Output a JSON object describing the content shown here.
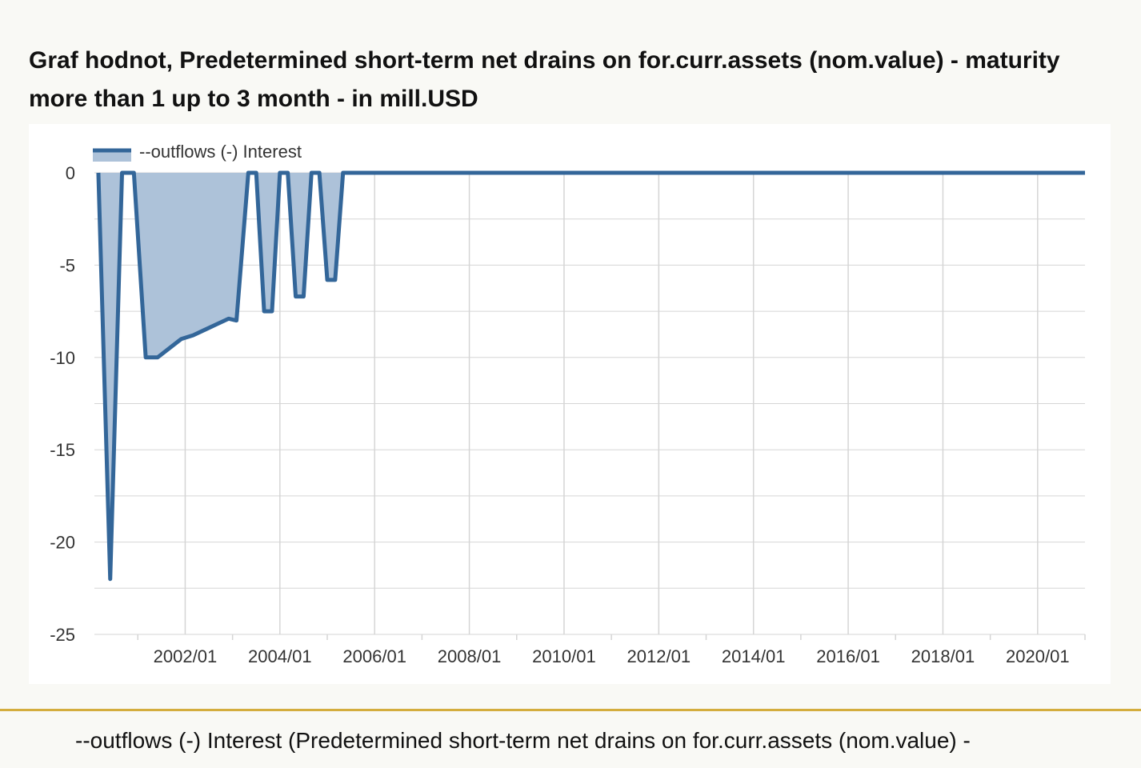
{
  "title": "Graf hodnot, Predetermined short-term net drains on for.curr.assets (nom.value) - maturity more than 1 up to 3 month - in mill.USD",
  "footer": {
    "caption": "--outflows (-) Interest (Predetermined short-term net drains on for.curr.assets (nom.value) -"
  },
  "chart_data": {
    "type": "area",
    "title": "Graf hodnot, Predetermined short-term net drains on for.curr.assets (nom.value) - maturity more than 1 up to 3 month - in mill.USD",
    "xlabel": "",
    "ylabel": "",
    "xlim": [
      "2000/02",
      "2021/01"
    ],
    "ylim": [
      -25,
      0
    ],
    "y_ticks": [
      0,
      -5,
      -10,
      -15,
      -20,
      -25
    ],
    "x_ticks": [
      "2002/01",
      "2004/01",
      "2006/01",
      "2008/01",
      "2010/01",
      "2012/01",
      "2014/01",
      "2016/01",
      "2018/01",
      "2020/01"
    ],
    "grid": true,
    "legend": {
      "position": "top-left"
    },
    "colors": {
      "line": "#336699",
      "fill": "#adc2d9",
      "grid": "#d5d5d5"
    },
    "series": [
      {
        "name": "--outflows (-) Interest",
        "points": [
          [
            "2000/03",
            0
          ],
          [
            "2000/06",
            -22
          ],
          [
            "2000/09",
            0
          ],
          [
            "2000/12",
            0
          ],
          [
            "2001/03",
            -10
          ],
          [
            "2001/06",
            -10
          ],
          [
            "2001/09",
            -9.5
          ],
          [
            "2001/12",
            -9
          ],
          [
            "2002/03",
            -8.8
          ],
          [
            "2002/06",
            -8.5
          ],
          [
            "2002/09",
            -8.2
          ],
          [
            "2002/12",
            -7.9
          ],
          [
            "2003/02",
            -8.0
          ],
          [
            "2003/05",
            0
          ],
          [
            "2003/07",
            0
          ],
          [
            "2003/09",
            -7.5
          ],
          [
            "2003/11",
            -7.5
          ],
          [
            "2004/01",
            0
          ],
          [
            "2004/03",
            0
          ],
          [
            "2004/05",
            -6.7
          ],
          [
            "2004/07",
            -6.7
          ],
          [
            "2004/09",
            0
          ],
          [
            "2004/11",
            0
          ],
          [
            "2005/01",
            -5.8
          ],
          [
            "2005/03",
            -5.8
          ],
          [
            "2005/05",
            0
          ],
          [
            "2021/01",
            0
          ]
        ]
      }
    ]
  }
}
